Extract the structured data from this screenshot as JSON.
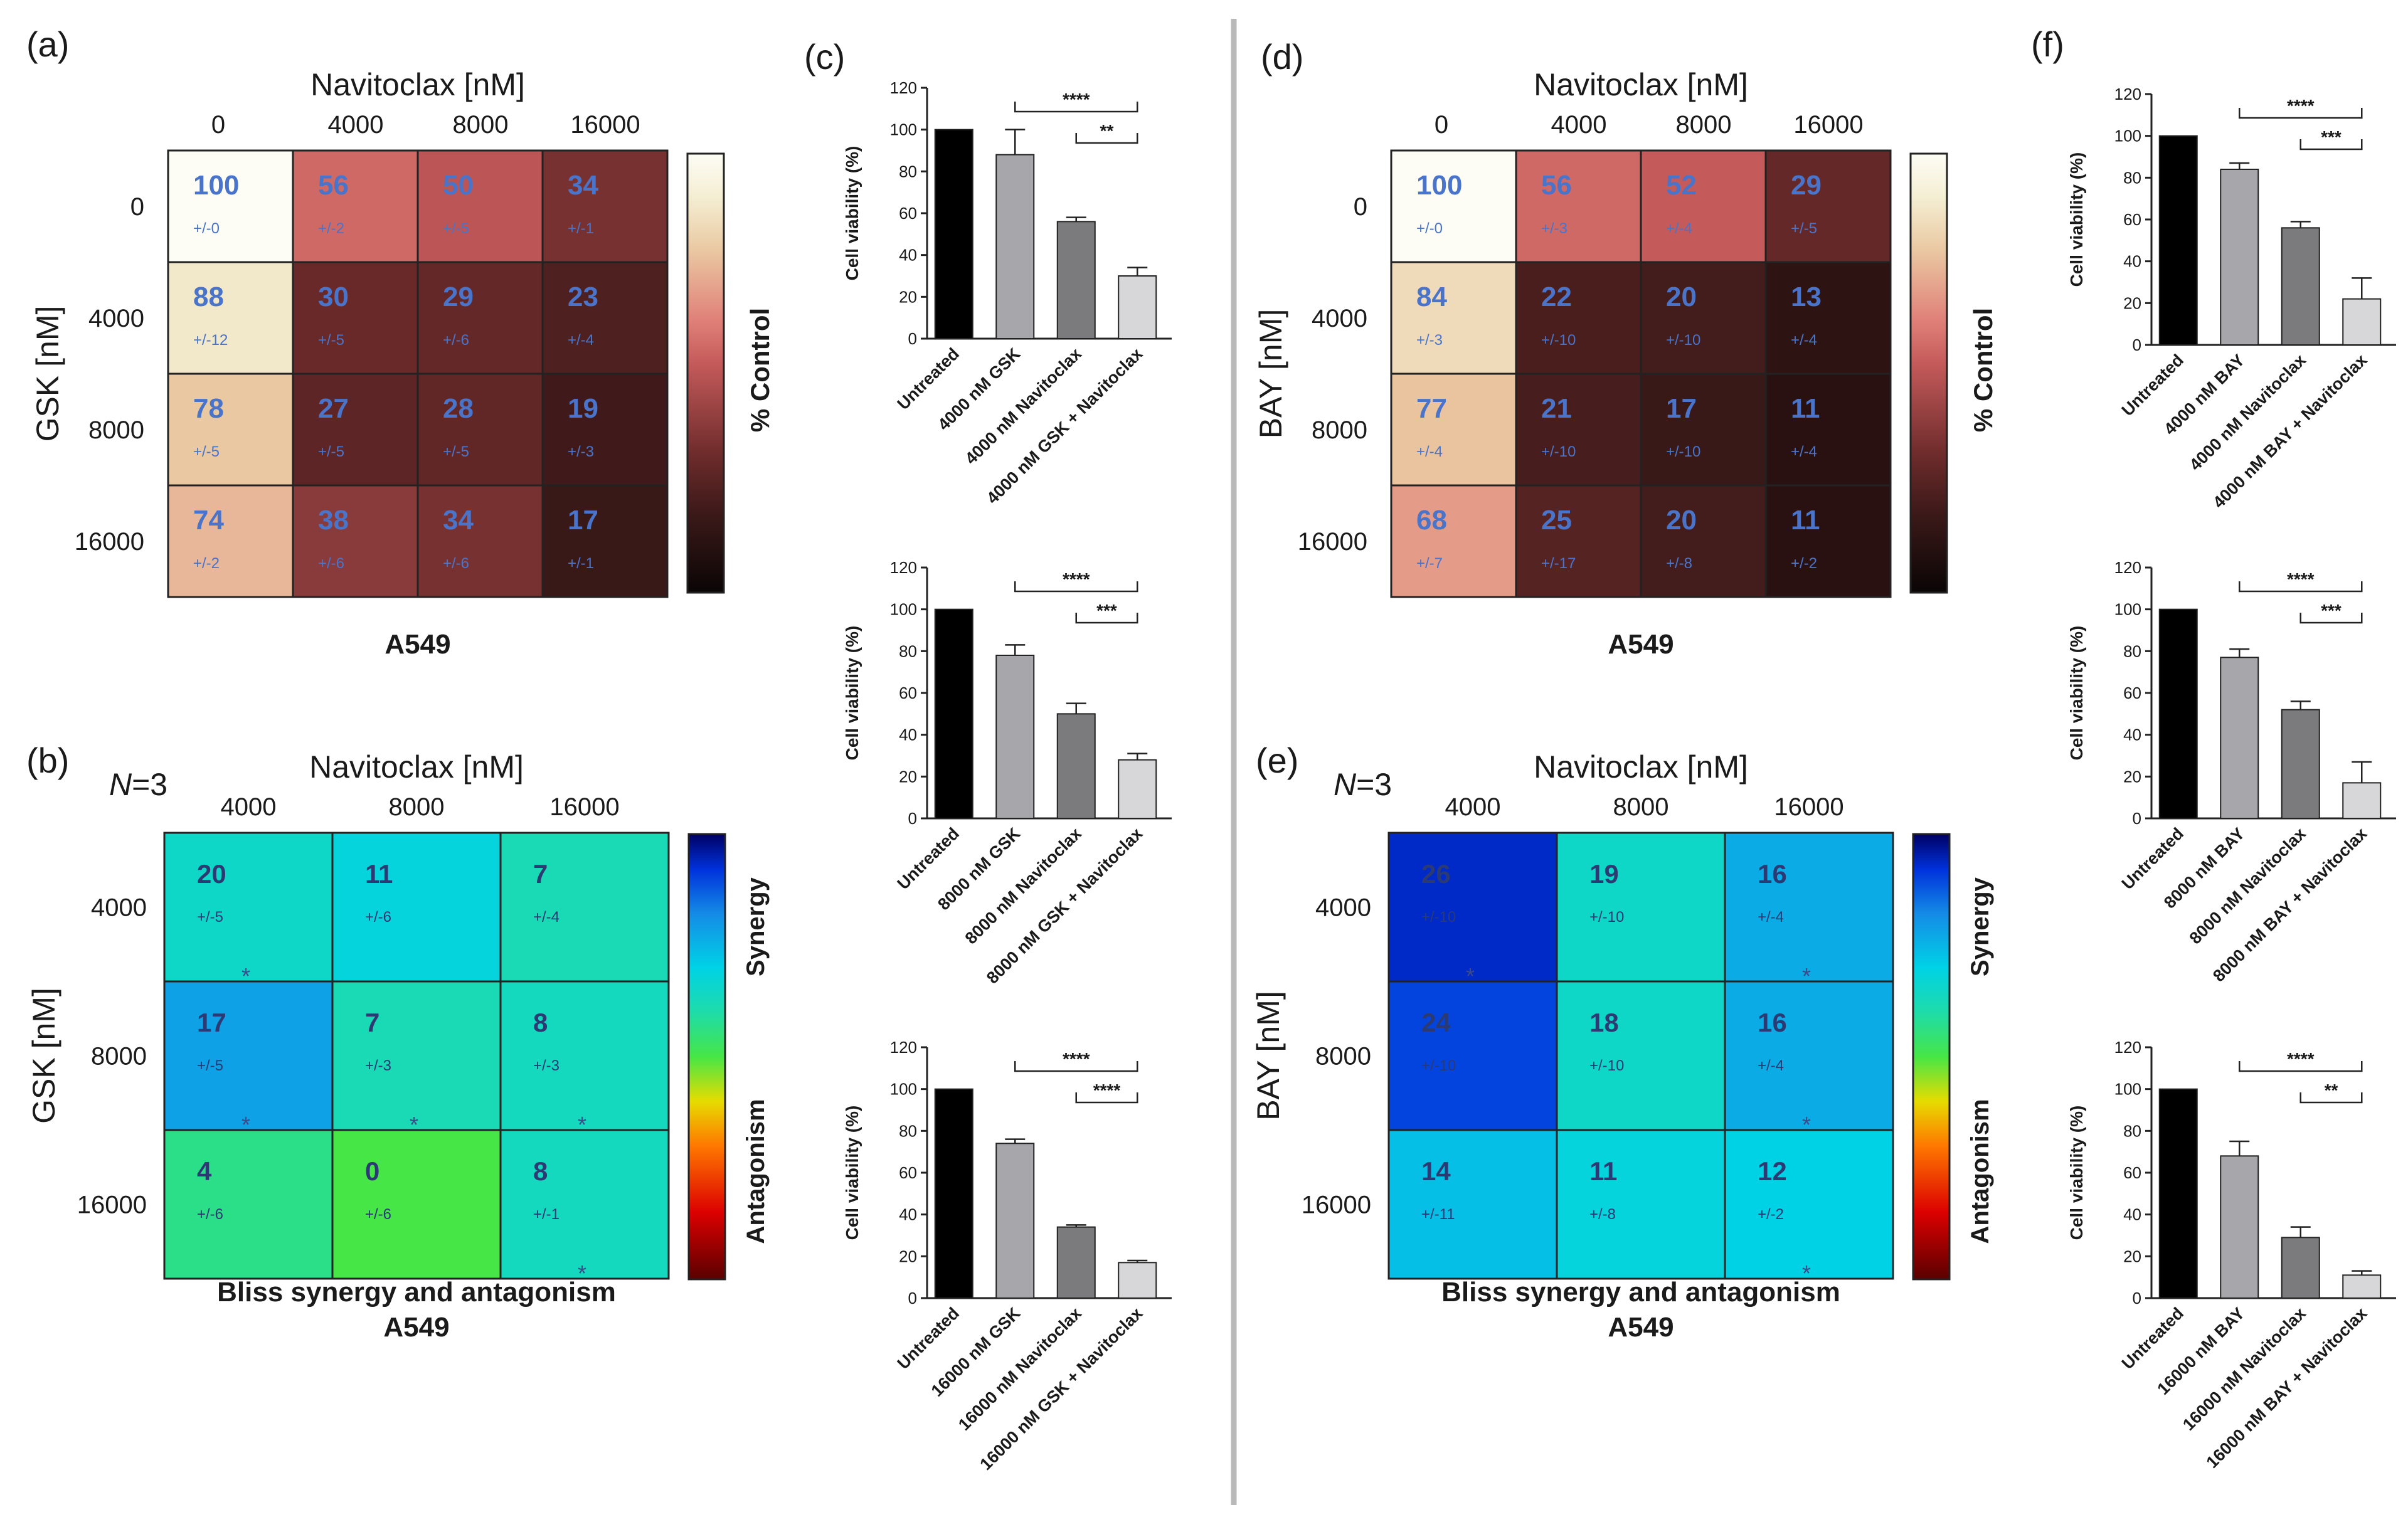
{
  "chart_data": [
    {
      "panel": "(a)",
      "type": "heatmap",
      "title": "A549",
      "x_title": "Navitoclax [nM]",
      "y_title": "GSK [nM]",
      "x_labels": [
        "0",
        "4000",
        "8000",
        "16000"
      ],
      "y_labels": [
        "0",
        "4000",
        "8000",
        "16000"
      ],
      "values": [
        [
          100,
          56,
          50,
          34
        ],
        [
          88,
          30,
          29,
          23
        ],
        [
          78,
          27,
          28,
          19
        ],
        [
          74,
          38,
          34,
          17
        ]
      ],
      "errors": [
        [
          "+/-0",
          "+/-2",
          "+/-5",
          "+/-1"
        ],
        [
          "+/-12",
          "+/-5",
          "+/-6",
          "+/-4"
        ],
        [
          "+/-5",
          "+/-5",
          "+/-5",
          "+/-3"
        ],
        [
          "+/-2",
          "+/-6",
          "+/-6",
          "+/-1"
        ]
      ],
      "colorbar_label": "% Control",
      "value_range": [
        0,
        100
      ]
    },
    {
      "panel": "(b)",
      "type": "heatmap",
      "title": "Bliss synergy and antagonism",
      "subtitle": "A549",
      "n_label_italic": "N",
      "n_label_rest": "=3",
      "x_title": "Navitoclax [nM]",
      "y_title": "GSK [nM]",
      "x_labels": [
        "4000",
        "8000",
        "16000"
      ],
      "y_labels": [
        "4000",
        "8000",
        "16000"
      ],
      "values": [
        [
          20,
          11,
          7
        ],
        [
          17,
          7,
          8
        ],
        [
          4,
          0,
          8
        ]
      ],
      "errors": [
        [
          "+/-5",
          "+/-6",
          "+/-4"
        ],
        [
          "+/-5",
          "+/-3",
          "+/-3"
        ],
        [
          "+/-6",
          "+/-6",
          "+/-1"
        ]
      ],
      "significant": [
        [
          true,
          false,
          false
        ],
        [
          true,
          true,
          true
        ],
        [
          false,
          false,
          true
        ]
      ],
      "colorbar_top": "Synergy",
      "colorbar_bottom": "Antagonism",
      "value_range": [
        -30,
        30
      ]
    },
    {
      "panel": "(c)",
      "type": "bar",
      "ylabel": "Cell viability (%)",
      "ylim": [
        0,
        120
      ],
      "yticks": [
        "0",
        "20",
        "40",
        "60",
        "80",
        "100",
        "120"
      ],
      "sub": [
        {
          "categories": [
            "Untreated",
            "4000 nM GSK",
            "4000 nM Navitoclax",
            "4000 nM GSK + Navitoclax"
          ],
          "values": [
            100,
            88,
            56,
            30
          ],
          "err": [
            0,
            12,
            2,
            4
          ],
          "sig": [
            {
              "from": 1,
              "to": 3,
              "label": "****"
            },
            {
              "from": 2,
              "to": 3,
              "label": "**"
            }
          ]
        },
        {
          "categories": [
            "Untreated",
            "8000 nM GSK",
            "8000 nM Navitoclax",
            "8000 nM GSK + Navitoclax"
          ],
          "values": [
            100,
            78,
            50,
            28
          ],
          "err": [
            0,
            5,
            5,
            3
          ],
          "sig": [
            {
              "from": 1,
              "to": 3,
              "label": "****"
            },
            {
              "from": 2,
              "to": 3,
              "label": "***"
            }
          ]
        },
        {
          "categories": [
            "Untreated",
            "16000 nM GSK",
            "16000 nM Navitoclax",
            "16000 nM GSK + Navitoclax"
          ],
          "values": [
            100,
            74,
            34,
            17
          ],
          "err": [
            0,
            2,
            1,
            1
          ],
          "sig": [
            {
              "from": 1,
              "to": 3,
              "label": "****"
            },
            {
              "from": 2,
              "to": 3,
              "label": "****"
            }
          ]
        }
      ]
    },
    {
      "panel": "(d)",
      "type": "heatmap",
      "title": "A549",
      "x_title": "Navitoclax [nM]",
      "y_title": "BAY [nM]",
      "x_labels": [
        "0",
        "4000",
        "8000",
        "16000"
      ],
      "y_labels": [
        "0",
        "4000",
        "8000",
        "16000"
      ],
      "values": [
        [
          100,
          56,
          52,
          29
        ],
        [
          84,
          22,
          20,
          13
        ],
        [
          77,
          21,
          17,
          11
        ],
        [
          68,
          25,
          20,
          11
        ]
      ],
      "errors": [
        [
          "+/-0",
          "+/-3",
          "+/-4",
          "+/-5"
        ],
        [
          "+/-3",
          "+/-10",
          "+/-10",
          "+/-4"
        ],
        [
          "+/-4",
          "+/-10",
          "+/-10",
          "+/-4"
        ],
        [
          "+/-7",
          "+/-17",
          "+/-8",
          "+/-2"
        ]
      ],
      "colorbar_label": "% Control",
      "value_range": [
        0,
        100
      ]
    },
    {
      "panel": "(e)",
      "type": "heatmap",
      "title": "Bliss synergy and antagonism",
      "subtitle": "A549",
      "n_label_italic": "N",
      "n_label_rest": "=3",
      "x_title": "Navitoclax [nM]",
      "y_title": "BAY [nM]",
      "x_labels": [
        "4000",
        "8000",
        "16000"
      ],
      "y_labels": [
        "4000",
        "8000",
        "16000"
      ],
      "values": [
        [
          26,
          19,
          16
        ],
        [
          24,
          18,
          16
        ],
        [
          14,
          11,
          12
        ]
      ],
      "errors": [
        [
          "+/-10",
          "+/-10",
          "+/-4"
        ],
        [
          "+/-10",
          "+/-10",
          "+/-4"
        ],
        [
          "+/-11",
          "+/-8",
          "+/-2"
        ]
      ],
      "significant": [
        [
          true,
          false,
          true
        ],
        [
          false,
          false,
          true
        ],
        [
          false,
          false,
          true
        ]
      ],
      "colorbar_top": "Synergy",
      "colorbar_bottom": "Antagonism",
      "value_range": [
        -30,
        30
      ]
    },
    {
      "panel": "(f)",
      "type": "bar",
      "ylabel": "Cell viability (%)",
      "ylim": [
        0,
        120
      ],
      "yticks": [
        "0",
        "20",
        "40",
        "60",
        "80",
        "100",
        "120"
      ],
      "sub": [
        {
          "categories": [
            "Untreated",
            "4000 nM BAY",
            "4000 nM Navitoclax",
            "4000 nM BAY + Navitoclax"
          ],
          "values": [
            100,
            84,
            56,
            22
          ],
          "err": [
            0,
            3,
            3,
            10
          ],
          "sig": [
            {
              "from": 1,
              "to": 3,
              "label": "****"
            },
            {
              "from": 2,
              "to": 3,
              "label": "***"
            }
          ]
        },
        {
          "categories": [
            "Untreated",
            "8000 nM BAY",
            "8000 nM Navitoclax",
            "8000 nM BAY + Navitoclax"
          ],
          "values": [
            100,
            77,
            52,
            17
          ],
          "err": [
            0,
            4,
            4,
            10
          ],
          "sig": [
            {
              "from": 1,
              "to": 3,
              "label": "****"
            },
            {
              "from": 2,
              "to": 3,
              "label": "***"
            }
          ]
        },
        {
          "categories": [
            "Untreated",
            "16000 nM BAY",
            "16000 nM Navitoclax",
            "16000 nM BAY + Navitoclax"
          ],
          "values": [
            100,
            68,
            29,
            11
          ],
          "err": [
            0,
            7,
            5,
            2
          ],
          "sig": [
            {
              "from": 1,
              "to": 3,
              "label": "****"
            },
            {
              "from": 2,
              "to": 3,
              "label": "**"
            }
          ]
        }
      ]
    }
  ],
  "colors": {
    "label_blue": "#4a74c9",
    "bliss_text": "#2b3a73",
    "divider": "#b9b9b9",
    "bar_fills": [
      "#000000",
      "#a6a6ab",
      "#7b7b7e",
      "#d7d7d9"
    ]
  }
}
